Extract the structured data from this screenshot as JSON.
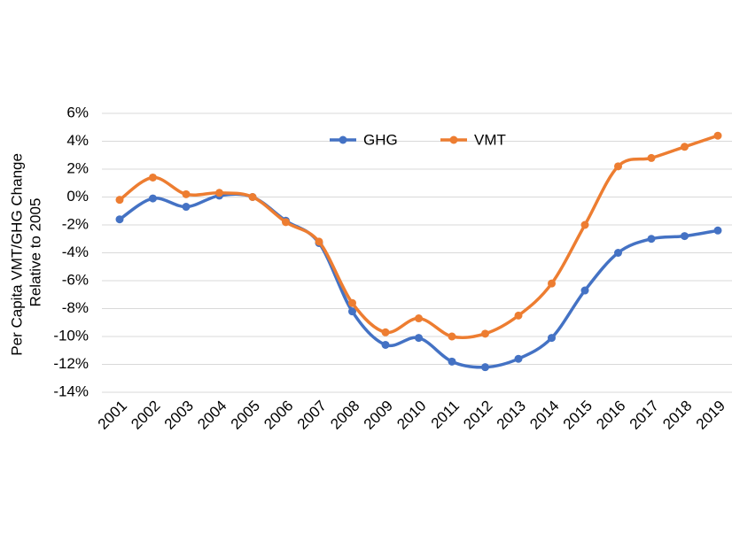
{
  "chart_data": {
    "type": "line",
    "ylabel": [
      "Per Capita VMT/GHG Change",
      "Relative to 2005"
    ],
    "categories": [
      "2001",
      "2002",
      "2003",
      "2004",
      "2005",
      "2006",
      "2007",
      "2008",
      "2009",
      "2010",
      "2011",
      "2012",
      "2013",
      "2014",
      "2015",
      "2016",
      "2017",
      "2018",
      "2019"
    ],
    "series": [
      {
        "name": "GHG",
        "color": "#4472c4",
        "values": [
          -1.6,
          -0.1,
          -0.7,
          0.1,
          0,
          -1.7,
          -3.3,
          -8.2,
          -10.6,
          -10.1,
          -11.8,
          -12.2,
          -11.6,
          -10.1,
          -6.7,
          -4.0,
          -3.0,
          -2.8,
          -2.4
        ]
      },
      {
        "name": "VMT",
        "color": "#ed7d31",
        "values": [
          -0.2,
          1.4,
          0.2,
          0.3,
          0,
          -1.8,
          -3.2,
          -7.6,
          -9.7,
          -8.7,
          -10.0,
          -9.8,
          -8.5,
          -6.2,
          -2.0,
          2.2,
          2.8,
          3.6,
          4.4
        ]
      }
    ],
    "ylim": [
      -14,
      6
    ],
    "yticks": [
      {
        "value": -14,
        "label": "-14%"
      },
      {
        "value": -12,
        "label": "-12%"
      },
      {
        "value": -10,
        "label": "-10%"
      },
      {
        "value": -8,
        "label": "-8%"
      },
      {
        "value": -6,
        "label": "-6%"
      },
      {
        "value": -4,
        "label": "-4%"
      },
      {
        "value": -2,
        "label": "-2%"
      },
      {
        "value": 0,
        "label": "0%"
      },
      {
        "value": 2,
        "label": "2%"
      },
      {
        "value": 4,
        "label": "4%"
      },
      {
        "value": 6,
        "label": "6%"
      }
    ],
    "grid": true,
    "smooth": true,
    "legend": "top"
  }
}
